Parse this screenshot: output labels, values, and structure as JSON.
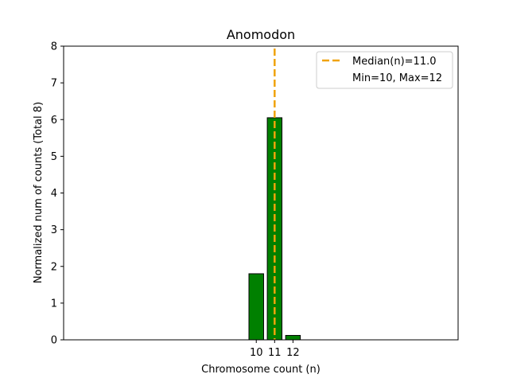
{
  "chart_data": {
    "type": "bar",
    "title": "Anomodon",
    "xlabel": "Chromosome count (n)",
    "ylabel": "Normalized num of counts     (Total 8)",
    "categories": [
      10,
      11,
      12
    ],
    "values": [
      1.8,
      6.05,
      0.12
    ],
    "xlim": [
      -0.5,
      21.0
    ],
    "ylim": [
      0,
      8
    ],
    "yticks": [
      0,
      1,
      2,
      3,
      4,
      5,
      6,
      7,
      8
    ],
    "bar_color": "#008000",
    "bar_edge_color": "#000000",
    "median": {
      "value": 11.0,
      "color": "#f0a30a",
      "label": "Median(n)=11.0"
    },
    "legend": {
      "position": "top-right",
      "entries": [
        "Median(n)=11.0",
        "Min=10, Max=12"
      ]
    },
    "grid": false
  }
}
